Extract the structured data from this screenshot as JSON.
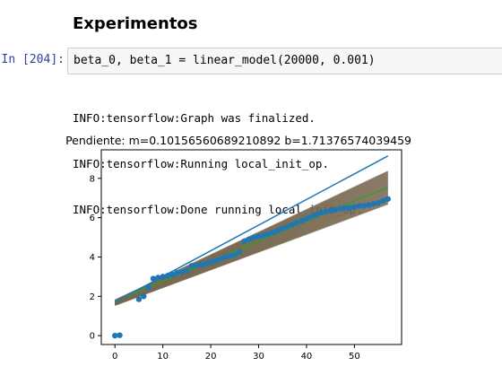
{
  "notebook": {
    "heading": "Experimentos",
    "cell": {
      "prompt": "In [204]:",
      "code": "beta_0, beta_1 = linear_model(20000, 0.001)"
    },
    "output_lines": [
      "INFO:tensorflow:Graph was finalized.",
      "INFO:tensorflow:Running local_init_op.",
      "INFO:tensorflow:Done running local_init_op."
    ]
  },
  "chart_data": {
    "type": "scatter",
    "title": "Pendiente: m=0.10156560689210892  b=1.7137657403945923",
    "xlabel": "",
    "ylabel": "",
    "xlim": [
      -2.85,
      59.85
    ],
    "ylim": [
      -0.45,
      9.45
    ],
    "xticks": [
      0,
      10,
      20,
      30,
      40,
      50
    ],
    "yticks": [
      0,
      2,
      4,
      6,
      8
    ],
    "grid": false,
    "colors": {
      "points": "#1f77b4",
      "fit_line": "#1f77b4",
      "fan": "#7a6a52",
      "green_line": "#2ca02c",
      "axes": "#000000"
    },
    "points": [
      [
        0,
        0.0
      ],
      [
        1,
        0.02
      ],
      [
        5,
        1.85
      ],
      [
        6,
        2.0
      ],
      [
        7,
        2.45
      ],
      [
        8,
        2.9
      ],
      [
        9,
        2.95
      ],
      [
        10,
        3.0
      ],
      [
        11,
        3.05
      ],
      [
        12,
        3.1
      ],
      [
        13,
        3.2
      ],
      [
        14,
        3.25
      ],
      [
        15,
        3.3
      ],
      [
        16,
        3.55
      ],
      [
        17,
        3.55
      ],
      [
        18,
        3.6
      ],
      [
        19,
        3.65
      ],
      [
        20,
        3.75
      ],
      [
        21,
        3.8
      ],
      [
        22,
        3.9
      ],
      [
        23,
        4.0
      ],
      [
        24,
        4.05
      ],
      [
        25,
        4.1
      ],
      [
        26,
        4.25
      ],
      [
        27,
        4.8
      ],
      [
        28,
        4.9
      ],
      [
        29,
        5.0
      ],
      [
        30,
        5.05
      ],
      [
        31,
        5.1
      ],
      [
        32,
        5.15
      ],
      [
        33,
        5.25
      ],
      [
        34,
        5.35
      ],
      [
        35,
        5.45
      ],
      [
        36,
        5.55
      ],
      [
        37,
        5.65
      ],
      [
        38,
        5.75
      ],
      [
        39,
        5.85
      ],
      [
        40,
        5.95
      ],
      [
        41,
        6.05
      ],
      [
        42,
        6.15
      ],
      [
        43,
        6.25
      ],
      [
        44,
        6.3
      ],
      [
        45,
        6.35
      ],
      [
        46,
        6.4
      ],
      [
        47,
        6.45
      ],
      [
        48,
        6.5
      ],
      [
        49,
        6.5
      ],
      [
        50,
        6.55
      ],
      [
        51,
        6.6
      ],
      [
        52,
        6.6
      ],
      [
        53,
        6.65
      ],
      [
        54,
        6.7
      ],
      [
        55,
        6.75
      ],
      [
        56,
        6.85
      ],
      [
        57,
        6.95
      ]
    ],
    "fit_line": {
      "x": [
        0,
        57
      ],
      "y": [
        1.71,
        9.14
      ]
    },
    "fan": {
      "x_start": 0,
      "x_end": 57,
      "y_start_low": 1.55,
      "y_start_high": 1.8,
      "y_end_low": 6.7,
      "y_end_high": 8.35,
      "line_count": 36
    },
    "green_line": {
      "x": [
        0,
        57
      ],
      "y": [
        1.75,
        7.55
      ]
    }
  }
}
